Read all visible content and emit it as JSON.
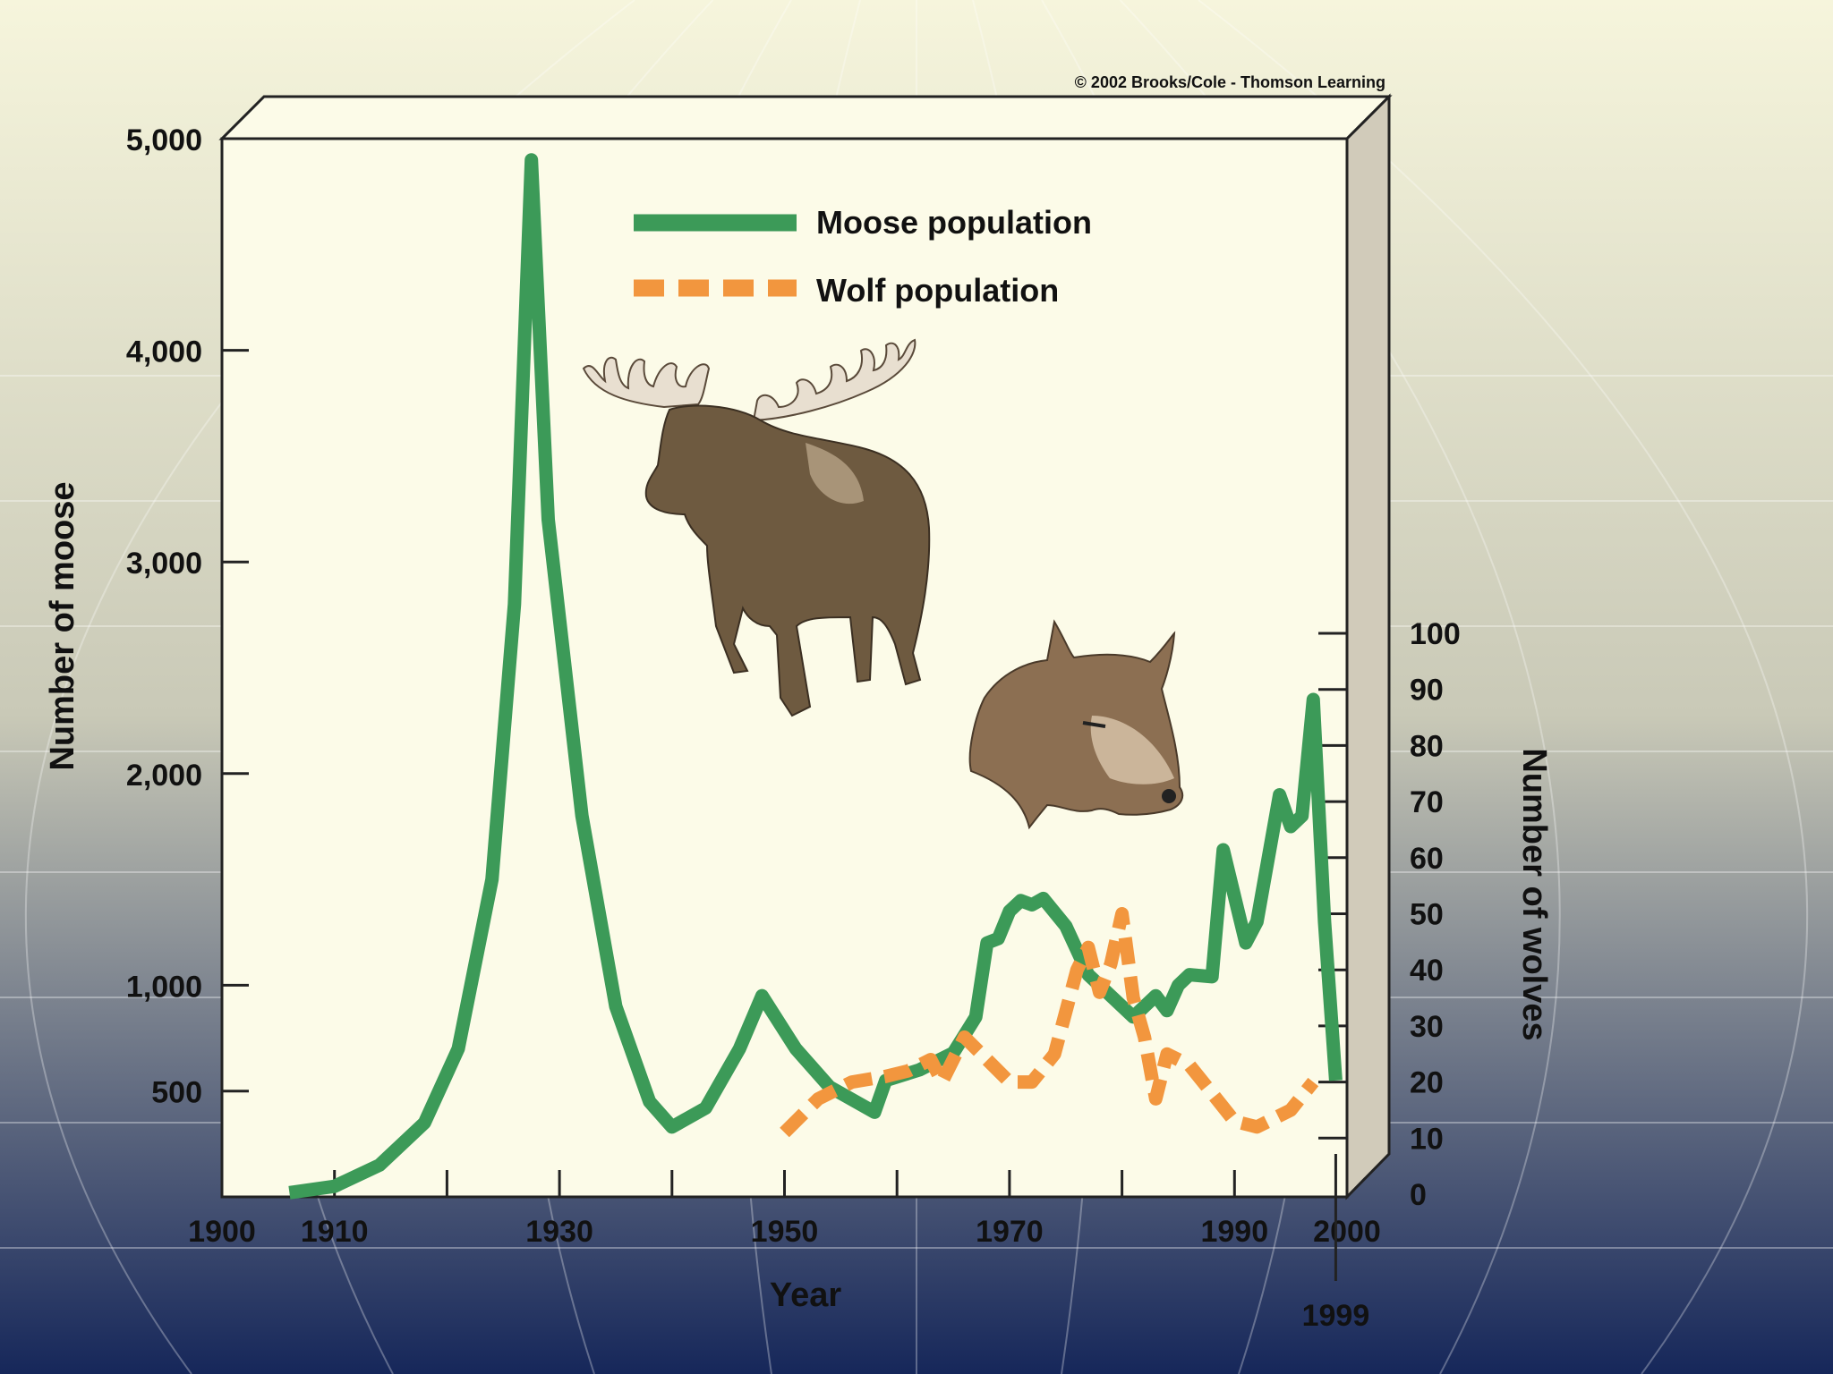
{
  "colors": {
    "bg_top": "#f6f5dc",
    "bg_mid": "#c9c9b7",
    "bg_bottom": "#16275a",
    "plot_face": "#fcfbe8",
    "box_side": "#d1cbba",
    "moose_line": "#3c9a58",
    "wolf_line": "#f2963e",
    "text": "#111111"
  },
  "copyright": "© 2002 Brooks/Cole - Thomson Learning",
  "chart_data": {
    "type": "line",
    "title": "",
    "xlabel": "Year",
    "ylabel_left": "Number of moose",
    "ylabel_right": "Number of wolves",
    "xlim": [
      1900,
      2000
    ],
    "x_ticks": [
      1900,
      1910,
      1930,
      1950,
      1970,
      1990,
      2000
    ],
    "x_tick_labels": [
      "1900",
      "1910",
      "1930",
      "1950",
      "1970",
      "1990",
      "2000"
    ],
    "x_minor_ticks": [
      1920,
      1940,
      1960,
      1980
    ],
    "x_annotation": {
      "year": 1999,
      "label": "1999"
    },
    "left_axis": {
      "ylim": [
        0,
        5000
      ],
      "ticks": [
        500,
        1000,
        2000,
        3000,
        4000,
        5000
      ],
      "tick_labels": [
        "500",
        "1,000",
        "2,000",
        "3,000",
        "4,000",
        "5,000"
      ]
    },
    "right_axis": {
      "ylim": [
        0,
        100
      ],
      "ticks": [
        0,
        10,
        20,
        30,
        40,
        50,
        60,
        70,
        80,
        90,
        100
      ],
      "tick_labels": [
        "0",
        "10",
        "20",
        "30",
        "40",
        "50",
        "60",
        "70",
        "80",
        "90",
        "100"
      ]
    },
    "legend_position": "top-center",
    "series": [
      {
        "name": "Moose population",
        "axis": "left",
        "style": "solid",
        "points": [
          [
            1906,
            20
          ],
          [
            1910,
            50
          ],
          [
            1914,
            150
          ],
          [
            1918,
            350
          ],
          [
            1921,
            700
          ],
          [
            1924,
            1500
          ],
          [
            1926,
            2800
          ],
          [
            1927.5,
            4900
          ],
          [
            1929,
            3200
          ],
          [
            1932,
            1800
          ],
          [
            1935,
            900
          ],
          [
            1938,
            450
          ],
          [
            1940,
            330
          ],
          [
            1943,
            420
          ],
          [
            1946,
            700
          ],
          [
            1948,
            950
          ],
          [
            1951,
            700
          ],
          [
            1954,
            520
          ],
          [
            1958,
            400
          ],
          [
            1959,
            550
          ],
          [
            1962,
            600
          ],
          [
            1965,
            680
          ],
          [
            1967,
            850
          ],
          [
            1968,
            1200
          ],
          [
            1969,
            1220
          ],
          [
            1970,
            1350
          ],
          [
            1971,
            1400
          ],
          [
            1972,
            1380
          ],
          [
            1973,
            1410
          ],
          [
            1975,
            1280
          ],
          [
            1977,
            1050
          ],
          [
            1979,
            950
          ],
          [
            1981,
            850
          ],
          [
            1983,
            950
          ],
          [
            1984,
            880
          ],
          [
            1985,
            1000
          ],
          [
            1986,
            1050
          ],
          [
            1988,
            1040
          ],
          [
            1989,
            1640
          ],
          [
            1991,
            1200
          ],
          [
            1992,
            1300
          ],
          [
            1994,
            1900
          ],
          [
            1995,
            1750
          ],
          [
            1996,
            1800
          ],
          [
            1997,
            2350
          ],
          [
            1998,
            1300
          ],
          [
            1999,
            550
          ]
        ]
      },
      {
        "name": "Wolf population",
        "axis": "right",
        "style": "dashed",
        "points": [
          [
            1950,
            11
          ],
          [
            1953,
            17
          ],
          [
            1956,
            20
          ],
          [
            1959,
            21
          ],
          [
            1961,
            22
          ],
          [
            1963,
            24
          ],
          [
            1964,
            20
          ],
          [
            1966,
            28
          ],
          [
            1968,
            24
          ],
          [
            1970,
            20
          ],
          [
            1972,
            20
          ],
          [
            1974,
            25
          ],
          [
            1976,
            40
          ],
          [
            1977,
            44
          ],
          [
            1978,
            36
          ],
          [
            1979,
            41
          ],
          [
            1980,
            50
          ],
          [
            1981,
            35
          ],
          [
            1982,
            28
          ],
          [
            1983,
            17
          ],
          [
            1984,
            25
          ],
          [
            1986,
            23
          ],
          [
            1988,
            18
          ],
          [
            1990,
            13
          ],
          [
            1992,
            12
          ],
          [
            1993,
            13
          ],
          [
            1995,
            15
          ],
          [
            1997,
            20
          ]
        ]
      }
    ]
  }
}
